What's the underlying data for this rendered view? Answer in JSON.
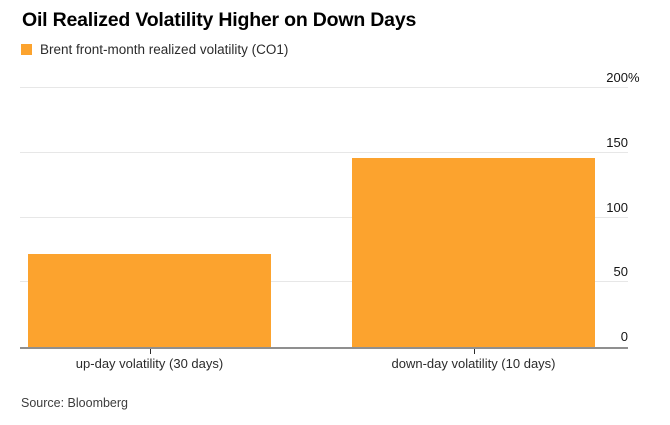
{
  "header": {
    "title": "Oil Realized Volatility Higher on Down Days",
    "legend_label": "Brent front-month realized volatility (CO1)"
  },
  "chart_data": {
    "type": "bar",
    "title": "Oil Realized Volatility Higher on Down Days",
    "series_name": "Brent front-month realized volatility (CO1)",
    "categories": [
      "up-day volatility (30 days)",
      "down-day volatility (10 days)"
    ],
    "values": [
      72,
      146
    ],
    "unit": "%",
    "ylim": [
      0,
      200
    ],
    "yticks": [
      0,
      50,
      100,
      150,
      200
    ],
    "ytick_labels": [
      "0",
      "50",
      "100",
      "150",
      "200%"
    ],
    "ylabel": "",
    "xlabel": "",
    "grid": true,
    "axis_side": "right",
    "legend_position": "top-left",
    "bar_color": "#fca32e",
    "gridline_color": "#e7e7e7",
    "baseline_color": "#8f8f8f"
  },
  "footer": {
    "source": "Source: Bloomberg"
  }
}
